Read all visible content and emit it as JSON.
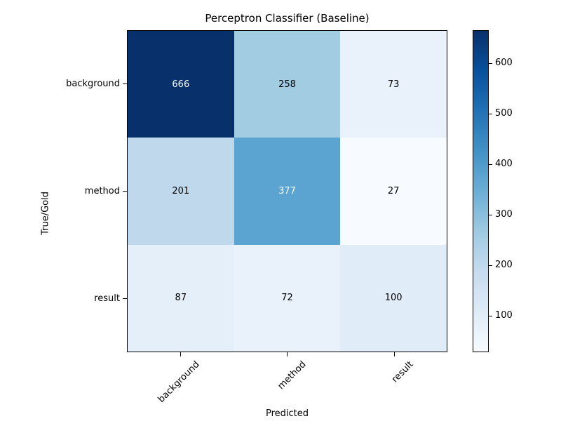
{
  "figure": {
    "background": "#ffffff"
  },
  "chart_data": {
    "type": "heatmap",
    "title": "Perceptron Classifier (Baseline)",
    "xlabel": "Predicted",
    "ylabel": "True/Gold",
    "x_categories": [
      "background",
      "method",
      "result"
    ],
    "y_categories": [
      "background",
      "method",
      "result"
    ],
    "values": [
      [
        666,
        258,
        73
      ],
      [
        201,
        377,
        27
      ],
      [
        87,
        72,
        100
      ]
    ],
    "vmin": 27,
    "vmax": 666,
    "colormap": "Blues",
    "cell_colors": [
      [
        "#08306b",
        "#a2cce2",
        "#e9f2fa"
      ],
      [
        "#bfd8ec",
        "#5ba3d0",
        "#f7fbff"
      ],
      [
        "#e4eff9",
        "#e9f2fa",
        "#e0ecf8"
      ]
    ],
    "cell_text_colors": [
      [
        "#ffffff",
        "#000000",
        "#000000"
      ],
      [
        "#000000",
        "#ffffff",
        "#000000"
      ],
      [
        "#000000",
        "#000000",
        "#000000"
      ]
    ],
    "colorbar": {
      "ticks": [
        100,
        200,
        300,
        400,
        500,
        600
      ],
      "gradient_stops": [
        "#f7fbff",
        "#deebf7",
        "#c6dbef",
        "#9ecae1",
        "#6baed6",
        "#4292c6",
        "#2171b5",
        "#08519c",
        "#08306b"
      ]
    },
    "legend": "none",
    "grid": false
  }
}
